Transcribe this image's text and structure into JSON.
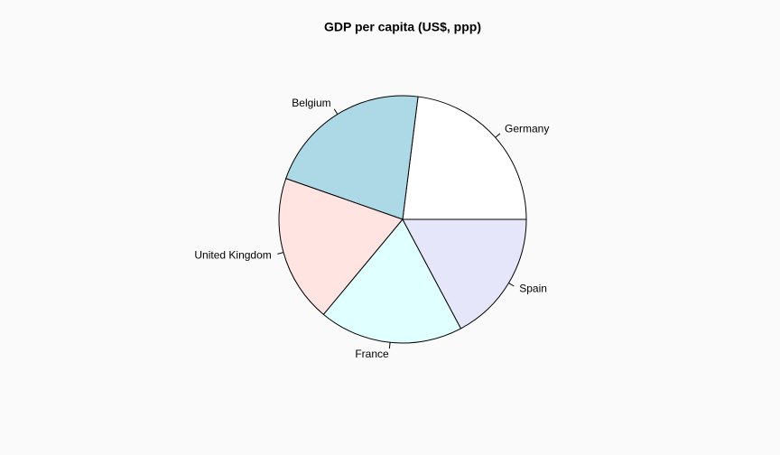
{
  "chart_data": {
    "type": "pie",
    "title": "GDP per capita (US$, ppp)",
    "categories": [
      "Germany",
      "Belgium",
      "United Kingdom",
      "France",
      "Spain"
    ],
    "values": [
      38000,
      35700,
      31900,
      31100,
      28400
    ],
    "colors": [
      "#ffffff",
      "#add8e6",
      "#ffe4e1",
      "#e0ffff",
      "#e6e6fa"
    ]
  }
}
